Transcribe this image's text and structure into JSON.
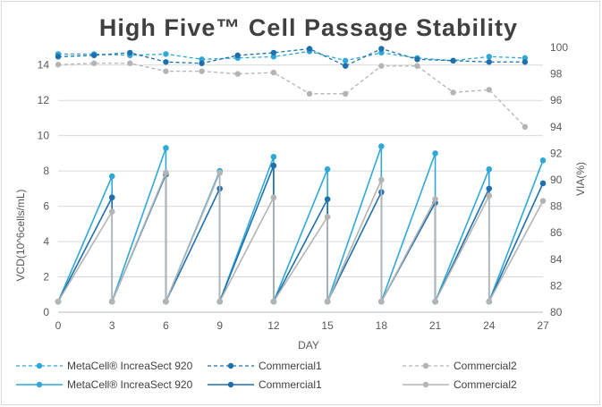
{
  "chart_data": {
    "type": "line",
    "title": "High Five™ Cell Passage Stability",
    "xlabel": "DAY",
    "ylabel_left": "VCD(10^6cells/mL)",
    "ylabel_right": "VIA(%)",
    "xlim": [
      0,
      27
    ],
    "ylim_left": [
      0,
      15
    ],
    "ylim_right": [
      80,
      100
    ],
    "x_ticks": [
      "0",
      "3",
      "6",
      "9",
      "12",
      "15",
      "18",
      "21",
      "24",
      "27"
    ],
    "y_left_ticks": [
      "0",
      "2",
      "4",
      "6",
      "8",
      "10",
      "12",
      "14"
    ],
    "y_right_ticks": [
      "80",
      "82",
      "84",
      "86",
      "88",
      "90",
      "92",
      "94",
      "96",
      "98",
      "100"
    ],
    "grid": "horizontal",
    "legend_position": "bottom",
    "colors": {
      "metacell": "#2fa8d8",
      "commercial1": "#1f6fad",
      "commercial2": "#b4b4b4"
    },
    "viability_series": [
      {
        "name": "MetaCell® IncreaSect 920",
        "color": "#2fa8d8",
        "dashed": true,
        "x": [
          0,
          2,
          4,
          6,
          8,
          10,
          12,
          14,
          16,
          18,
          20,
          22,
          24,
          26
        ],
        "y": [
          99.5,
          99.5,
          99.4,
          99.5,
          99.1,
          99.2,
          99.3,
          99.7,
          99.0,
          99.6,
          99.2,
          99.0,
          99.3,
          99.2
        ]
      },
      {
        "name": "Commercial1",
        "color": "#1f6fad",
        "dashed": true,
        "x": [
          0,
          2,
          4,
          6,
          8,
          10,
          12,
          14,
          16,
          18,
          20,
          22,
          24,
          26
        ],
        "y": [
          99.3,
          99.4,
          99.6,
          98.9,
          98.8,
          99.4,
          99.6,
          99.9,
          98.6,
          99.9,
          99.1,
          99.0,
          98.9,
          98.9
        ]
      },
      {
        "name": "Commercial2",
        "color": "#b4b4b4",
        "dashed": true,
        "x": [
          0,
          2,
          4,
          6,
          8,
          10,
          12,
          14,
          16,
          18,
          20,
          22,
          24,
          26
        ],
        "y": [
          98.7,
          98.8,
          98.8,
          98.2,
          98.2,
          98.0,
          98.1,
          96.5,
          96.5,
          98.6,
          98.6,
          96.6,
          96.8,
          94.0
        ]
      }
    ],
    "vcd_series": [
      {
        "name": "MetaCell® IncreaSect 920",
        "color": "#2fa8d8",
        "dashed": false,
        "x": [
          0,
          3,
          3,
          6,
          6,
          9,
          9,
          12,
          12,
          15,
          15,
          18,
          18,
          21,
          21,
          24,
          24,
          27
        ],
        "y": [
          0.6,
          7.7,
          0.6,
          9.3,
          0.6,
          8.0,
          0.6,
          8.8,
          0.6,
          8.1,
          0.6,
          9.4,
          0.6,
          9.0,
          0.6,
          8.1,
          0.6,
          8.6
        ]
      },
      {
        "name": "Commercial1",
        "color": "#1f6fad",
        "dashed": false,
        "x": [
          0,
          3,
          3,
          6,
          6,
          9,
          9,
          12,
          12,
          15,
          15,
          18,
          18,
          21,
          21,
          24,
          24,
          27
        ],
        "y": [
          0.6,
          6.5,
          0.6,
          7.8,
          0.6,
          7.0,
          0.6,
          8.3,
          0.6,
          6.4,
          0.6,
          6.8,
          0.6,
          6.2,
          0.6,
          7.0,
          0.6,
          7.3
        ]
      },
      {
        "name": "Commercial2",
        "color": "#b4b4b4",
        "dashed": false,
        "x": [
          0,
          3,
          3,
          6,
          6,
          9,
          9,
          12,
          12,
          15,
          15,
          18,
          18,
          21,
          21,
          24,
          24,
          27
        ],
        "y": [
          0.6,
          5.7,
          0.6,
          7.9,
          0.6,
          7.9,
          0.6,
          6.5,
          0.6,
          5.4,
          0.6,
          7.5,
          0.6,
          6.4,
          0.6,
          6.6,
          0.6,
          6.3
        ]
      }
    ],
    "legend": [
      {
        "label": "MetaCell® IncreaSect 920",
        "color": "#2fa8d8",
        "dashed": true
      },
      {
        "label": "Commercial1",
        "color": "#1f6fad",
        "dashed": true
      },
      {
        "label": "Commercial2",
        "color": "#b4b4b4",
        "dashed": true
      },
      {
        "label": "MetaCell® IncreaSect 920",
        "color": "#2fa8d8",
        "dashed": false
      },
      {
        "label": "Commercial1",
        "color": "#1f6fad",
        "dashed": false
      },
      {
        "label": "Commercial2",
        "color": "#b4b4b4",
        "dashed": false
      }
    ]
  }
}
